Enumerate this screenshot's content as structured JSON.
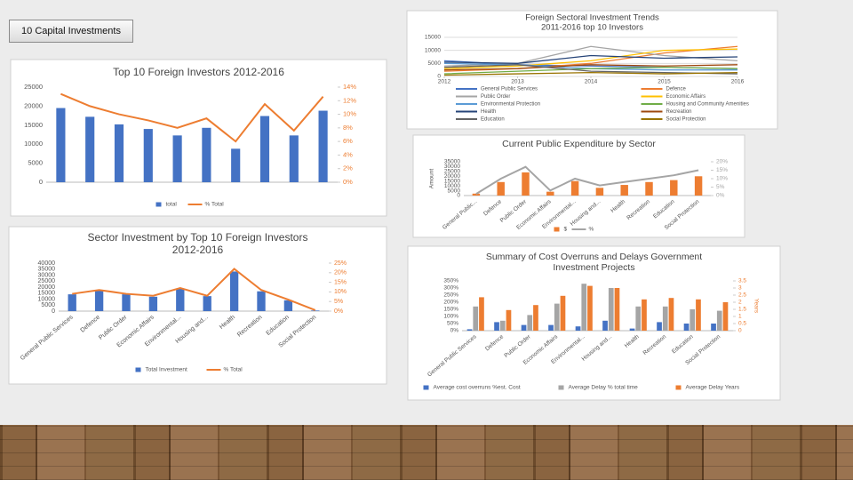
{
  "header": {
    "button": "10 Capital Investments"
  },
  "chart_data": [
    {
      "type": "combo",
      "title": "Top 10 Foreign Investors 2012-2016",
      "categories": [
        null,
        null,
        null,
        null,
        null,
        null,
        null,
        null,
        null,
        null
      ],
      "series": [
        {
          "name": "total",
          "type": "bar",
          "color": "#4472c4",
          "values": [
            19500,
            17200,
            15200,
            14000,
            12300,
            14300,
            8800,
            17400,
            12300,
            18800
          ]
        },
        {
          "name": "% Total",
          "type": "line",
          "axis": "y2",
          "color": "#ed7d31",
          "values": [
            13,
            11.2,
            10,
            9.1,
            8,
            9.4,
            6,
            11.5,
            7.6,
            12.6
          ]
        }
      ],
      "ylim": [
        0,
        25000
      ],
      "yticks": [
        0,
        5000,
        10000,
        15000,
        20000,
        25000
      ],
      "y2lim": [
        0,
        14
      ],
      "y2ticks": [
        {
          "value": 0,
          "label": "0%"
        },
        {
          "value": 2,
          "label": "2%"
        },
        {
          "value": 4,
          "label": "4%"
        },
        {
          "value": 6,
          "label": "6%"
        },
        {
          "value": 8,
          "label": "8%"
        },
        {
          "value": 10,
          "label": "10%"
        },
        {
          "value": 12,
          "label": "12%"
        },
        {
          "value": 14,
          "label": "14%"
        }
      ],
      "grid": false
    },
    {
      "type": "combo",
      "title": [
        "Sector Investment by Top 10 Foreign Investors",
        "2012-2016"
      ],
      "categories": [
        "General Public Services",
        "Defence",
        "Public Order",
        "Economic Affairs",
        "Environmental...",
        "Housing and...",
        "Health",
        "Recreation",
        "Education",
        "Social Protection"
      ],
      "series": [
        {
          "name": "Total Investment",
          "type": "bar",
          "color": "#4472c4",
          "values": [
            14000,
            17000,
            14000,
            12000,
            18500,
            12500,
            33000,
            16500,
            9000,
            500
          ]
        },
        {
          "name": "% Total",
          "type": "line",
          "axis": "y2",
          "color": "#ed7d31",
          "values": [
            9,
            11,
            9,
            8,
            12,
            8,
            22,
            11,
            6,
            0.5
          ]
        }
      ],
      "ylim": [
        0,
        40000
      ],
      "yticks": [
        0,
        5000,
        10000,
        15000,
        20000,
        25000,
        30000,
        35000,
        40000
      ],
      "y2lim": [
        0,
        25
      ],
      "y2ticks": [
        {
          "value": 0,
          "label": "0%"
        },
        {
          "value": 5,
          "label": "5%"
        },
        {
          "value": 10,
          "label": "10%"
        },
        {
          "value": 15,
          "label": "15%"
        },
        {
          "value": 20,
          "label": "20%"
        },
        {
          "value": 25,
          "label": "25%"
        }
      ],
      "grid": false
    },
    {
      "type": "line",
      "title": [
        "Foreign Sectoral Investment Trends",
        "2011-2016 top 10 Investors"
      ],
      "x": [
        2012,
        2013,
        2014,
        2015,
        2016
      ],
      "xlim": [
        2012,
        2016
      ],
      "xticks": [
        2012,
        2013,
        2014,
        2015,
        2016
      ],
      "series": [
        {
          "name": "General Public Services",
          "color": "#4472c4",
          "values": [
            6000,
            4500,
            4000,
            3500,
            3000
          ]
        },
        {
          "name": "Defence",
          "color": "#ed7d31",
          "values": [
            2000,
            3000,
            5000,
            9000,
            11500
          ]
        },
        {
          "name": "Public Order",
          "color": "#a5a5a5",
          "values": [
            4000,
            5000,
            11500,
            8000,
            6000
          ]
        },
        {
          "name": "Economic Affairs",
          "color": "#ffc000",
          "values": [
            3000,
            4000,
            6000,
            10000,
            10500
          ]
        },
        {
          "name": "Environmental Protection",
          "color": "#5b9bd5",
          "values": [
            5000,
            4500,
            3000,
            2500,
            2500
          ]
        },
        {
          "name": "Housing and Community Amenities",
          "color": "#70ad47",
          "values": [
            1000,
            2000,
            3000,
            3500,
            3000
          ]
        },
        {
          "name": "Health",
          "color": "#264478",
          "values": [
            5500,
            5000,
            8000,
            7000,
            7500
          ]
        },
        {
          "name": "Recreation",
          "color": "#9e480e",
          "values": [
            2500,
            3000,
            4500,
            4000,
            4500
          ]
        },
        {
          "name": "Education",
          "color": "#636363",
          "values": [
            3500,
            4500,
            2000,
            1500,
            1000
          ]
        },
        {
          "name": "Social Protection",
          "color": "#997300",
          "values": [
            500,
            1000,
            1500,
            1000,
            1500
          ]
        }
      ],
      "ylim": [
        0,
        15000
      ],
      "yticks": [
        0,
        5000,
        10000,
        15000
      ],
      "grid": true
    },
    {
      "type": "combo",
      "title": "Current Public Expenditure by Sector",
      "y_label": "Amount",
      "categories": [
        "General Public...",
        "Defence",
        "Public Order",
        "Economic Affairs",
        "Environmental...",
        "Housing and...",
        "Health",
        "Recreation",
        "Education",
        "Social Protection"
      ],
      "series": [
        {
          "name": "$",
          "type": "bar",
          "color": "#ed7d31",
          "values": [
            2000,
            14000,
            24000,
            4000,
            15000,
            8000,
            11000,
            14000,
            16000,
            20000
          ]
        },
        {
          "name": "%",
          "type": "line",
          "axis": "y2",
          "color": "#a5a5a5",
          "values": [
            1,
            10,
            17,
            3,
            10,
            6,
            8,
            10,
            12,
            15
          ]
        }
      ],
      "ylim": [
        0,
        35000
      ],
      "yticks": [
        0,
        5000,
        10000,
        15000,
        20000,
        25000,
        30000,
        35000
      ],
      "y2lim": [
        0,
        20
      ],
      "y2ticks": [
        {
          "value": 0,
          "label": "0%"
        },
        {
          "value": 5,
          "label": "5%"
        },
        {
          "value": 10,
          "label": "10%"
        },
        {
          "value": 15,
          "label": "15%"
        },
        {
          "value": 20,
          "label": "20%"
        }
      ],
      "grid": false
    },
    {
      "type": "combo",
      "title": [
        "Summary of Cost Overruns and Delays Government",
        "Investment Projects"
      ],
      "y2_label": "Years",
      "categories": [
        "General Public Services",
        "Defence",
        "Public Order",
        "Economic Affairs",
        "Environmental...",
        "Housing and...",
        "Health",
        "Recreation",
        "Education",
        "Social Protection"
      ],
      "series": [
        {
          "name": "Average cost overruns %est. Cost",
          "type": "bar",
          "color": "#4472c4",
          "values": [
            10,
            60,
            40,
            40,
            30,
            70,
            15,
            60,
            50,
            50
          ]
        },
        {
          "name": "Average Delay %  total time",
          "type": "bar",
          "color": "#a5a5a5",
          "values": [
            170,
            70,
            110,
            190,
            330,
            300,
            170,
            170,
            150,
            140
          ]
        },
        {
          "name": "Average Delay Years",
          "type": "bar",
          "axis": "y2",
          "color": "#ed7d31",
          "values": [
            2.35,
            1.45,
            1.8,
            2.45,
            3.15,
            3.0,
            2.2,
            2.3,
            2.2,
            2.0
          ]
        }
      ],
      "ylim": [
        0,
        350
      ],
      "yticks": [
        {
          "value": 0,
          "label": "0%"
        },
        {
          "value": 50,
          "label": "50%"
        },
        {
          "value": 100,
          "label": "100%"
        },
        {
          "value": 150,
          "label": "150%"
        },
        {
          "value": 200,
          "label": "200%"
        },
        {
          "value": 250,
          "label": "250%"
        },
        {
          "value": 300,
          "label": "300%"
        },
        {
          "value": 350,
          "label": "350%"
        }
      ],
      "y2lim": [
        0,
        3.5
      ],
      "y2ticks": [
        0,
        0.5,
        1,
        1.5,
        2,
        2.5,
        3,
        3.5
      ],
      "grid": false
    }
  ]
}
